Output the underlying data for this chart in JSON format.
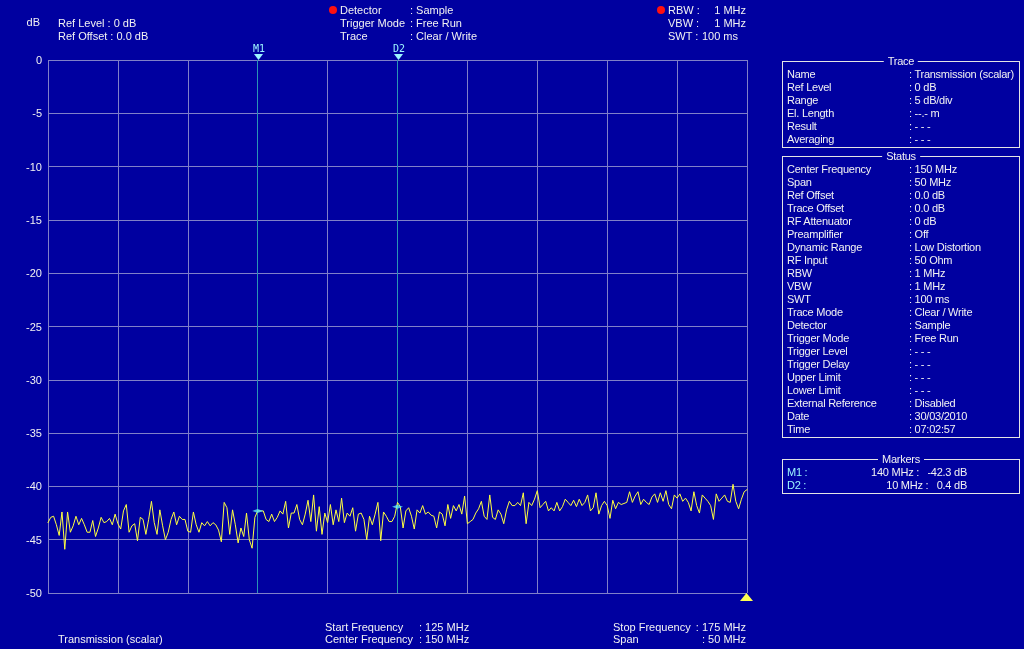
{
  "chart_data": [
    {
      "type": "line",
      "ylabel": "dB",
      "annotations": [
        "Ref Level : 0 dB",
        "Ref Offset : 0.0 dB",
        "Detector",
        ": Sample",
        "Trigger Mode",
        ": Free Run",
        "Trace",
        ": Clear / Write",
        "RBW :",
        "1 MHz",
        "VBW :",
        "1 MHz",
        "SWT :",
        "100 ms",
        "Transmission (scalar)",
        "Start Frequency",
        ": 125 MHz",
        "Center Frequency",
        ": 150 MHz",
        "Stop Frequency",
        ": 175 MHz",
        "Span",
        ": 50 MHz",
        "M1",
        "D2"
      ],
      "categories": [
        null,
        null,
        null,
        null,
        null,
        null,
        null,
        null,
        null,
        null,
        null,
        null,
        null,
        null,
        null,
        null,
        null,
        null,
        null,
        null,
        null,
        null,
        null,
        null,
        null,
        null,
        null,
        null,
        null,
        null,
        null,
        null,
        null,
        null,
        null,
        null,
        null,
        null,
        null,
        null,
        null,
        null,
        null,
        null,
        null,
        null,
        null,
        null,
        null,
        null,
        null,
        null,
        null,
        null,
        null,
        null,
        null,
        null,
        null,
        null,
        null,
        null,
        null,
        null,
        null,
        null,
        null,
        null,
        null,
        null,
        null,
        null,
        null,
        null,
        null,
        null,
        null,
        null,
        null,
        null,
        null,
        null,
        null,
        null,
        null,
        null,
        null,
        null,
        null,
        null,
        null,
        null,
        null,
        null,
        null,
        null,
        null,
        null,
        null,
        null,
        null,
        null,
        null,
        null,
        null,
        null,
        null,
        null,
        null,
        null,
        null,
        null,
        null,
        null,
        null,
        null,
        null,
        null,
        null,
        null,
        null,
        null,
        null,
        null,
        null,
        null,
        null,
        null,
        null,
        null,
        null,
        null,
        null,
        null,
        null,
        null,
        null,
        null,
        null,
        null,
        null,
        null,
        null,
        null,
        null,
        null,
        null,
        null,
        null,
        null,
        null,
        null,
        null,
        null,
        null,
        null,
        null,
        null,
        null,
        null,
        null,
        null,
        null,
        null,
        null,
        null,
        null,
        null,
        null,
        null,
        null,
        null,
        null,
        null,
        null,
        null,
        null,
        null,
        null,
        null,
        null,
        null,
        null,
        null,
        null,
        null,
        null,
        null,
        null,
        null,
        null,
        null,
        null,
        null,
        null,
        null,
        null,
        null,
        null,
        null,
        null,
        null,
        null,
        null,
        null,
        null,
        null,
        null,
        null,
        null,
        null,
        null,
        null,
        null,
        null,
        null,
        null,
        null,
        null,
        null,
        null,
        null,
        null,
        null,
        null,
        null,
        null,
        null,
        null,
        null,
        null,
        null,
        null,
        null,
        null,
        null,
        null,
        null,
        null,
        null,
        null,
        null,
        null,
        null,
        null,
        null,
        null,
        null,
        null,
        null,
        null
      ],
      "ylim": [
        -50,
        0
      ],
      "yticks": [
        -50,
        -45,
        -40,
        -35,
        -30,
        -25,
        -20,
        -15,
        -10,
        -5,
        0
      ],
      "tick_labels": "y",
      "grid": true,
      "line_style": "solid",
      "series": [
        {
          "color": "#ffff40",
          "marker": "none",
          "values": [
            -43.4,
            -42.9,
            -42.8,
            -43.6,
            -44.6,
            -42.4,
            -45.9,
            -42.4,
            -44.3,
            -43.7,
            -42.8,
            -43.6,
            -43.0,
            -43.6,
            -44.3,
            -44.3,
            -43.2,
            -44.7,
            -43.9,
            -42.9,
            -43.4,
            -43.3,
            -43.0,
            -43.6,
            -42.6,
            -43.5,
            -44.0,
            -42.3,
            -41.7,
            -44.3,
            -43.7,
            -43.5,
            -45.1,
            -42.9,
            -43.1,
            -44.5,
            -43.1,
            -41.4,
            -43.4,
            -44.5,
            -42.2,
            -43.7,
            -45.0,
            -44.3,
            -43.1,
            -42.4,
            -43.6,
            -42.8,
            -43.1,
            -43.1,
            -44.2,
            -44.3,
            -42.4,
            -43.6,
            -44.3,
            -43.4,
            -43.7,
            -43.3,
            -43.7,
            -43.4,
            -43.6,
            -44.1,
            -45.2,
            -41.5,
            -42.0,
            -44.5,
            -42.2,
            -43.6,
            -45.3,
            -43.9,
            -44.7,
            -42.5,
            -45.0,
            -45.8,
            -42.9,
            -42.3,
            -42.3,
            -42.3,
            -43.1,
            -43.3,
            -42.6,
            -43.3,
            -42.9,
            -42.3,
            -42.6,
            -41.4,
            -43.9,
            -42.5,
            -42.5,
            -41.7,
            -43.1,
            -43.6,
            -42.6,
            -41.3,
            -43.3,
            -40.8,
            -44.2,
            -41.9,
            -44.5,
            -42.5,
            -43.4,
            -41.7,
            -43.6,
            -42.2,
            -43.3,
            -41.1,
            -43.4,
            -42.5,
            -42.8,
            -42.0,
            -44.2,
            -42.6,
            -42.5,
            -43.1,
            -45.0,
            -42.8,
            -43.6,
            -42.6,
            -41.5,
            -45.1,
            -42.4,
            -42.8,
            -43.3,
            -43.3,
            -42.8,
            -41.5,
            -41.9,
            -43.9,
            -42.3,
            -42.0,
            -42.8,
            -44.0,
            -42.2,
            -42.5,
            -41.8,
            -42.6,
            -42.4,
            -42.7,
            -42.8,
            -43.9,
            -42.4,
            -42.6,
            -43.7,
            -41.7,
            -43.0,
            -41.8,
            -42.3,
            -41.7,
            -42.6,
            -40.9,
            -43.5,
            -43.3,
            -43.1,
            -42.5,
            -42.1,
            -41.4,
            -42.8,
            -43.1,
            -40.8,
            -42.9,
            -43.1,
            -42.2,
            -42.6,
            -43.5,
            -42.2,
            -41.4,
            -41.8,
            -41.8,
            -41.5,
            -41.8,
            -40.6,
            -43.5,
            -41.5,
            -41.8,
            -41.2,
            -40.4,
            -42.0,
            -41.7,
            -41.4,
            -42.3,
            -42.0,
            -42.3,
            -41.5,
            -42.3,
            -41.9,
            -41.2,
            -41.5,
            -41.8,
            -41.3,
            -41.9,
            -41.2,
            -41.8,
            -41.5,
            -40.8,
            -42.3,
            -42.0,
            -40.6,
            -42.6,
            -41.8,
            -41.4,
            -41.8,
            -43.0,
            -41.3,
            -42.1,
            -41.5,
            -41.7,
            -41.6,
            -41.5,
            -40.5,
            -41.5,
            -40.9,
            -40.5,
            -41.7,
            -41.2,
            -41.5,
            -41.7,
            -41.0,
            -40.7,
            -41.5,
            -40.6,
            -41.4,
            -40.4,
            -41.7,
            -42.1,
            -40.8,
            -41.1,
            -40.7,
            -41.4,
            -41.1,
            -41.5,
            -42.3,
            -40.5,
            -41.8,
            -42.5,
            -40.8,
            -41.1,
            -41.4,
            -41.8,
            -43.1,
            -40.7,
            -41.4,
            -41.1,
            -40.8,
            -41.4,
            -41.5,
            -39.8,
            -41.4,
            -42.1,
            -41.2,
            -40.5,
            -40.3
          ]
        },
        {
          "type": "scatter",
          "color": "#60e8f8",
          "values": [
            null,
            null,
            null,
            null,
            null,
            null,
            null,
            null,
            null,
            null,
            null,
            null,
            null,
            null,
            null,
            null,
            null,
            null,
            null,
            null,
            null,
            null,
            null,
            null,
            null,
            null,
            null,
            null,
            null,
            null,
            null,
            null,
            null,
            null,
            null,
            null,
            null,
            null,
            null,
            null,
            null,
            null,
            null,
            null,
            null,
            null,
            null,
            null,
            null,
            null,
            null,
            null,
            null,
            null,
            null,
            null,
            null,
            null,
            null,
            null,
            null,
            null,
            null,
            null,
            null,
            null,
            null,
            null,
            null,
            null,
            null,
            null,
            null,
            null,
            null,
            -42.3,
            null,
            null,
            null,
            null,
            null,
            null,
            null,
            null,
            null,
            null,
            null,
            null,
            null,
            null,
            null,
            null,
            null,
            null,
            null,
            null,
            null,
            null,
            null,
            null,
            null,
            null,
            null,
            null,
            null,
            null,
            null,
            null,
            null,
            null,
            null,
            null,
            null,
            null,
            null,
            null,
            null,
            null,
            null,
            null,
            null,
            null,
            null,
            null,
            null,
            -41.9,
            null,
            null,
            null,
            null,
            null,
            null,
            null,
            null,
            null,
            null,
            null,
            null,
            null,
            null,
            null,
            null,
            null,
            null,
            null,
            null,
            null,
            null,
            null,
            null,
            null,
            null,
            null,
            null,
            null,
            null,
            null,
            null,
            null,
            null,
            null,
            null,
            null,
            null,
            null,
            null,
            null,
            null,
            null,
            null,
            null,
            null,
            null,
            null,
            null,
            null,
            null,
            null,
            null,
            null,
            null,
            null,
            null,
            null,
            null,
            null,
            null,
            null,
            null,
            null,
            null,
            null,
            null,
            null,
            null,
            null,
            null,
            null,
            null,
            null,
            null,
            null,
            null,
            null,
            null,
            null,
            null,
            null,
            null,
            null,
            null,
            null,
            null,
            null,
            null,
            null,
            null,
            null,
            null,
            null,
            null,
            null,
            null,
            null,
            null,
            null,
            null,
            null,
            null,
            null,
            null,
            null,
            null,
            null,
            null,
            null,
            null,
            null,
            null,
            null,
            null,
            null,
            null,
            null,
            null,
            null,
            null,
            null,
            null,
            null,
            null
          ]
        }
      ]
    },
    {
      "type": "other",
      "title": "Trace",
      "annotations": [
        "Name",
        ": Transmission (scalar)",
        "Ref Level",
        ": 0 dB",
        "Range",
        ": 5 dB/div",
        "El. Length",
        ": --.- m",
        "Result",
        ": - - -",
        "Averaging",
        ": - - -"
      ]
    },
    {
      "type": "other",
      "title": "Status",
      "annotations": [
        "Center Frequency",
        ": 150 MHz",
        "Span",
        ": 50 MHz",
        "Ref Offset",
        ": 0.0 dB",
        "Trace Offset",
        ": 0.0 dB",
        "RF Attenuator",
        ": 0 dB",
        "Preamplifier",
        ": Off",
        "Dynamic Range",
        ": Low Distortion",
        "RF Input",
        ": 50 Ohm",
        "RBW",
        ": 1 MHz",
        "VBW",
        ": 1 MHz",
        "SWT",
        ": 100 ms",
        "Trace Mode",
        ": Clear / Write",
        "Detector",
        ": Sample",
        "Trigger Mode",
        ": Free Run",
        "Trigger Level",
        ": - - -",
        "Trigger Delay",
        ": - - -",
        "Upper Limit",
        ": - - -",
        "Lower Limit",
        ": - - -",
        "External Reference",
        ": Disabled",
        "Date",
        ": 30/03/2010",
        "Time",
        ": 07:02:57"
      ]
    },
    {
      "type": "other",
      "title": "Markers",
      "annotations": [
        "M1 :",
        "140 MHz :   -42.3 dB",
        "D2 :",
        "10 MHz :   0.4 dB"
      ]
    }
  ]
}
